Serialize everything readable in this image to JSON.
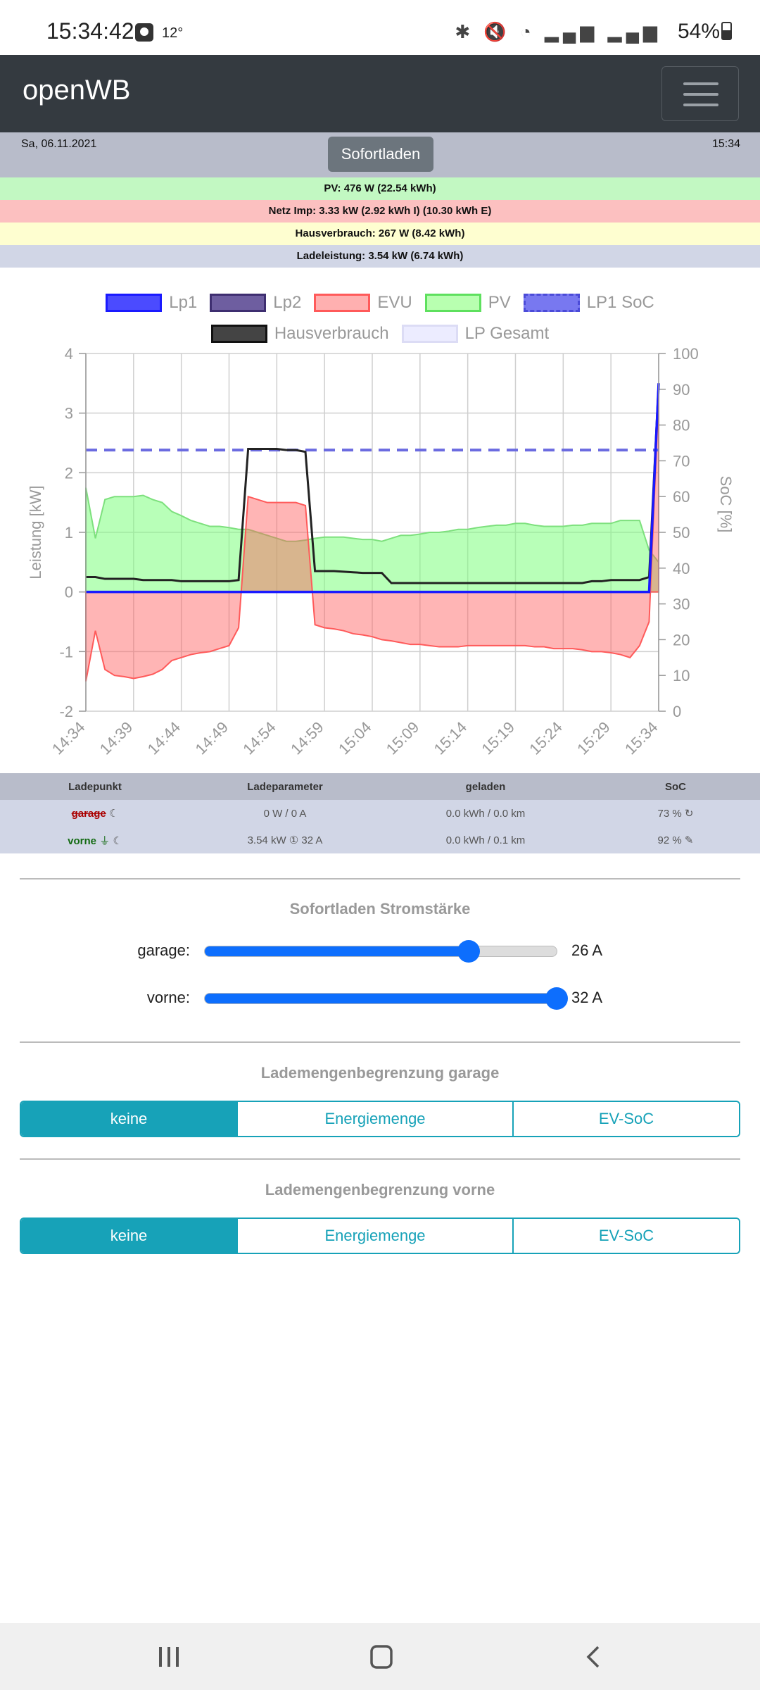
{
  "statusbar": {
    "time": "15:34:42",
    "temp": "12°",
    "battery": "54%"
  },
  "app": {
    "title": "openWB"
  },
  "info": {
    "date": "Sa, 06.11.2021",
    "time": "15:34",
    "mode_button": "Sofortladen",
    "pv": "PV: 476 W (22.54 kWh)",
    "evu": "Netz Imp: 3.33 kW (2.92 kWh I) (10.30 kWh E)",
    "haus": "Hausverbrauch: 267 W (8.42 kWh)",
    "lade": "Ladeleistung: 3.54 kW (6.74 kWh)"
  },
  "colors": {
    "lp1": "#1a1aff",
    "lp2": "#4b3a80",
    "evu": "#ff5a5a",
    "pv": "#7dff7d",
    "haus": "#222222",
    "soc": "#4b4bd8",
    "accent": "#17a2b8",
    "slider": "#0d6efd"
  },
  "chart_data": {
    "type": "line",
    "legend": [
      "Lp1",
      "Lp2",
      "EVU",
      "PV",
      "LP1 SoC",
      "Hausverbrauch",
      "LP Gesamt"
    ],
    "ylabel": "Leistung [kW]",
    "y2label": "SoC [%]",
    "ylim": [
      -2,
      4
    ],
    "y2lim": [
      0,
      100
    ],
    "yticks": [
      "4",
      "3",
      "2",
      "1",
      "0",
      "-1",
      "-2"
    ],
    "y2ticks": [
      "100",
      "90",
      "80",
      "70",
      "60",
      "50",
      "40",
      "30",
      "20",
      "10",
      "0"
    ],
    "xticks": [
      "14:34",
      "14:39",
      "14:44",
      "14:49",
      "14:54",
      "14:59",
      "15:04",
      "15:09",
      "15:14",
      "15:19",
      "15:24",
      "15:29",
      "15:34"
    ],
    "x": [
      0,
      1,
      2,
      3,
      4,
      5,
      6,
      7,
      8,
      9,
      10,
      11,
      12,
      13,
      14,
      15,
      16,
      17,
      18,
      19,
      20,
      21,
      22,
      23,
      24,
      25,
      26,
      27,
      28,
      29,
      30,
      31,
      32,
      33,
      34,
      35,
      36,
      37,
      38,
      39,
      40,
      41,
      42,
      43,
      44,
      45,
      46,
      47,
      48,
      49,
      50,
      51,
      52,
      53,
      54,
      55,
      56,
      57,
      58,
      59,
      60
    ],
    "series": [
      {
        "name": "PV",
        "values": [
          1.75,
          0.9,
          1.55,
          1.6,
          1.6,
          1.6,
          1.62,
          1.55,
          1.5,
          1.35,
          1.28,
          1.2,
          1.15,
          1.1,
          1.1,
          1.08,
          1.05,
          1.05,
          1.0,
          0.95,
          0.9,
          0.85,
          0.85,
          0.87,
          0.9,
          0.92,
          0.92,
          0.92,
          0.9,
          0.88,
          0.88,
          0.85,
          0.9,
          0.95,
          0.95,
          0.97,
          1.0,
          1.0,
          1.02,
          1.05,
          1.05,
          1.08,
          1.1,
          1.12,
          1.12,
          1.15,
          1.15,
          1.12,
          1.1,
          1.1,
          1.1,
          1.12,
          1.12,
          1.15,
          1.15,
          1.15,
          1.2,
          1.2,
          1.2,
          0.7,
          0.5
        ]
      },
      {
        "name": "EVU",
        "values": [
          -1.5,
          -0.65,
          -1.3,
          -1.4,
          -1.42,
          -1.45,
          -1.42,
          -1.38,
          -1.3,
          -1.15,
          -1.1,
          -1.05,
          -1.02,
          -1.0,
          -0.95,
          -0.9,
          -0.6,
          1.6,
          1.55,
          1.5,
          1.5,
          1.5,
          1.5,
          1.45,
          -0.55,
          -0.6,
          -0.62,
          -0.65,
          -0.7,
          -0.72,
          -0.75,
          -0.8,
          -0.82,
          -0.85,
          -0.88,
          -0.88,
          -0.9,
          -0.92,
          -0.92,
          -0.92,
          -0.9,
          -0.9,
          -0.9,
          -0.9,
          -0.9,
          -0.9,
          -0.9,
          -0.92,
          -0.92,
          -0.95,
          -0.95,
          -0.95,
          -0.97,
          -1.0,
          -1.0,
          -1.02,
          -1.05,
          -1.1,
          -0.9,
          -0.5,
          3.3
        ]
      },
      {
        "name": "Hausverbrauch",
        "values": [
          0.25,
          0.25,
          0.22,
          0.22,
          0.22,
          0.22,
          0.2,
          0.2,
          0.2,
          0.2,
          0.18,
          0.18,
          0.18,
          0.18,
          0.18,
          0.18,
          0.2,
          2.4,
          2.4,
          2.4,
          2.4,
          2.38,
          2.38,
          2.35,
          0.35,
          0.35,
          0.35,
          0.34,
          0.33,
          0.32,
          0.32,
          0.32,
          0.15,
          0.15,
          0.15,
          0.15,
          0.15,
          0.15,
          0.15,
          0.15,
          0.15,
          0.15,
          0.15,
          0.15,
          0.15,
          0.15,
          0.15,
          0.15,
          0.15,
          0.15,
          0.15,
          0.15,
          0.15,
          0.18,
          0.18,
          0.2,
          0.2,
          0.2,
          0.2,
          0.25,
          3.5
        ]
      },
      {
        "name": "Lp1",
        "values": [
          0,
          0,
          0,
          0,
          0,
          0,
          0,
          0,
          0,
          0,
          0,
          0,
          0,
          0,
          0,
          0,
          0,
          0,
          0,
          0,
          0,
          0,
          0,
          0,
          0,
          0,
          0,
          0,
          0,
          0,
          0,
          0,
          0,
          0,
          0,
          0,
          0,
          0,
          0,
          0,
          0,
          0,
          0,
          0,
          0,
          0,
          0,
          0,
          0,
          0,
          0,
          0,
          0,
          0,
          0,
          0,
          0,
          0,
          0,
          0,
          3.5
        ]
      },
      {
        "name": "LP1 SoC",
        "values": [
          73,
          73,
          73,
          73,
          73,
          73,
          73,
          73,
          73,
          73,
          73,
          73,
          73,
          73,
          73,
          73,
          73,
          73,
          73,
          73,
          73,
          73,
          73,
          73,
          73,
          73,
          73,
          73,
          73,
          73,
          73,
          73,
          73,
          73,
          73,
          73,
          73,
          73,
          73,
          73,
          73,
          73,
          73,
          73,
          73,
          73,
          73,
          73,
          73,
          73,
          73,
          73,
          73,
          73,
          73,
          73,
          73,
          73,
          73,
          73,
          73
        ]
      }
    ]
  },
  "table": {
    "headers": [
      "Ladepunkt",
      "Ladeparameter",
      "geladen",
      "SoC"
    ],
    "rows": [
      {
        "name": "garage",
        "param": "0 W / 0 A",
        "charged": "0.0 kWh / 0.0 km",
        "soc": "73 %"
      },
      {
        "name": "vorne",
        "param": "3.54 kW ① 32 A",
        "charged": "0.0 kWh / 0.1 km",
        "soc": "92 %"
      }
    ]
  },
  "sofort": {
    "title": "Sofortladen Stromstärke",
    "sliders": [
      {
        "label": "garage:",
        "value": "26 A",
        "fraction": 0.75
      },
      {
        "label": "vorne:",
        "value": "32 A",
        "fraction": 1.0
      }
    ]
  },
  "limit_garage": {
    "title": "Lademengenbegrenzung garage",
    "options": [
      "keine",
      "Energiemenge",
      "EV-SoC"
    ]
  },
  "limit_vorne": {
    "title": "Lademengenbegrenzung vorne",
    "options": [
      "keine",
      "Energiemenge",
      "EV-SoC"
    ]
  }
}
